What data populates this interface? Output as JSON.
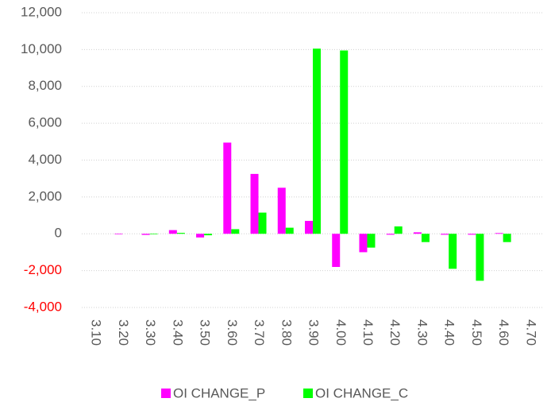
{
  "chart_data": {
    "type": "bar",
    "categories": [
      "3.10",
      "3.20",
      "3.30",
      "3.40",
      "3.50",
      "3.60",
      "3.70",
      "3.80",
      "3.90",
      "4.00",
      "4.10",
      "4.20",
      "4.30",
      "4.40",
      "4.50",
      "4.60",
      "4.70"
    ],
    "series": [
      {
        "name": "OI CHANGE_P",
        "color": "#ff00ff",
        "values": [
          0,
          -30,
          -60,
          200,
          -200,
          4950,
          3250,
          2500,
          700,
          -1800,
          -1000,
          -50,
          80,
          -50,
          -50,
          40,
          0
        ]
      },
      {
        "name": "OI CHANGE_C",
        "color": "#00ff00",
        "values": [
          0,
          0,
          -30,
          50,
          -80,
          250,
          1150,
          330,
          10050,
          9950,
          -750,
          400,
          -450,
          -1900,
          -2550,
          -450,
          0
        ]
      }
    ],
    "ylim": [
      -4000,
      12000
    ],
    "yticks": [
      {
        "value": -4000,
        "label": "-4,000"
      },
      {
        "value": -2000,
        "label": "-2,000"
      },
      0,
      {
        "value": 2000,
        "label": "2,000"
      },
      {
        "value": 4000,
        "label": "4,000"
      },
      {
        "value": 6000,
        "label": "6,000"
      },
      {
        "value": 8000,
        "label": "8,000"
      },
      {
        "value": 10000,
        "label": "10,000"
      },
      {
        "value": 12000,
        "label": "12,000"
      }
    ],
    "negative_tick_color": "#ff0000",
    "grid": true,
    "legend": "bottom"
  }
}
